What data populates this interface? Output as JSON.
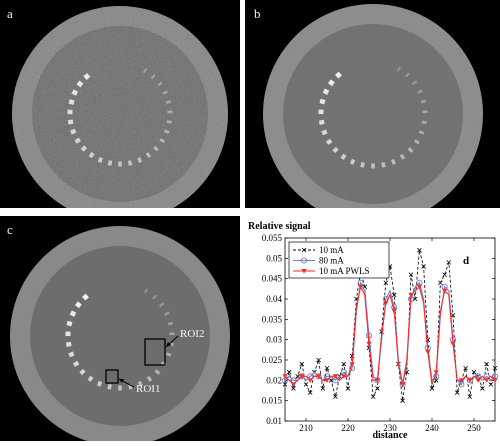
{
  "panels": [
    {
      "id": "a",
      "label": "a",
      "noise": "high"
    },
    {
      "id": "b",
      "label": "b",
      "noise": "low"
    },
    {
      "id": "c",
      "label": "c",
      "noise": "pwls",
      "rois": [
        "ROI2",
        "ROI1"
      ]
    }
  ],
  "colors": {
    "ten_ma": "#000000",
    "eighty_ma": "#6b80c8",
    "pwls": "#ff2a2a",
    "background": "#000000"
  },
  "chart_data": {
    "type": "line",
    "panel_label": "d",
    "title": "Relative signal",
    "xlabel": "distance",
    "ylabel": "",
    "xlim": [
      205,
      255
    ],
    "ylim": [
      0.01,
      0.055
    ],
    "x_ticks": [
      210,
      220,
      230,
      240,
      250
    ],
    "y_ticks": [
      0.01,
      0.015,
      0.02,
      0.025,
      0.03,
      0.035,
      0.04,
      0.045,
      0.05,
      0.055
    ],
    "grid": false,
    "legend_position": "top-left",
    "x": [
      205,
      206,
      207,
      208,
      209,
      210,
      211,
      212,
      213,
      214,
      215,
      216,
      217,
      218,
      219,
      220,
      221,
      222,
      223,
      224,
      225,
      226,
      227,
      228,
      229,
      230,
      231,
      232,
      233,
      234,
      235,
      236,
      237,
      238,
      239,
      240,
      241,
      242,
      243,
      244,
      245,
      246,
      247,
      248,
      249,
      250,
      251,
      252,
      253,
      254,
      255
    ],
    "series": [
      {
        "name": "10 mA",
        "marker": "x",
        "line": "dashed",
        "values": [
          0.019,
          0.022,
          0.018,
          0.021,
          0.024,
          0.019,
          0.017,
          0.022,
          0.025,
          0.018,
          0.023,
          0.02,
          0.016,
          0.021,
          0.024,
          0.018,
          0.026,
          0.04,
          0.047,
          0.043,
          0.028,
          0.016,
          0.018,
          0.032,
          0.044,
          0.048,
          0.041,
          0.024,
          0.015,
          0.022,
          0.046,
          0.04,
          0.052,
          0.048,
          0.03,
          0.018,
          0.02,
          0.044,
          0.046,
          0.049,
          0.036,
          0.017,
          0.02,
          0.023,
          0.016,
          0.022,
          0.021,
          0.018,
          0.024,
          0.019,
          0.023
        ]
      },
      {
        "name": "80 mA",
        "marker": "o",
        "line": "solid",
        "values": [
          0.02,
          0.021,
          0.02,
          0.02,
          0.021,
          0.02,
          0.021,
          0.022,
          0.021,
          0.02,
          0.021,
          0.021,
          0.02,
          0.021,
          0.022,
          0.021,
          0.023,
          0.037,
          0.044,
          0.042,
          0.031,
          0.021,
          0.02,
          0.03,
          0.04,
          0.042,
          0.038,
          0.025,
          0.019,
          0.024,
          0.04,
          0.043,
          0.044,
          0.04,
          0.028,
          0.02,
          0.021,
          0.036,
          0.043,
          0.042,
          0.03,
          0.02,
          0.019,
          0.021,
          0.02,
          0.021,
          0.021,
          0.02,
          0.021,
          0.02,
          0.021
        ]
      },
      {
        "name": "10 mA PWLS",
        "marker": "v",
        "line": "solid",
        "values": [
          0.021,
          0.02,
          0.019,
          0.02,
          0.021,
          0.021,
          0.02,
          0.021,
          0.021,
          0.02,
          0.02,
          0.021,
          0.021,
          0.02,
          0.021,
          0.021,
          0.024,
          0.038,
          0.043,
          0.041,
          0.029,
          0.02,
          0.02,
          0.031,
          0.039,
          0.041,
          0.037,
          0.024,
          0.019,
          0.025,
          0.041,
          0.042,
          0.043,
          0.039,
          0.027,
          0.019,
          0.022,
          0.037,
          0.042,
          0.041,
          0.029,
          0.02,
          0.02,
          0.021,
          0.02,
          0.021,
          0.02,
          0.021,
          0.02,
          0.021,
          0.02
        ]
      }
    ]
  }
}
